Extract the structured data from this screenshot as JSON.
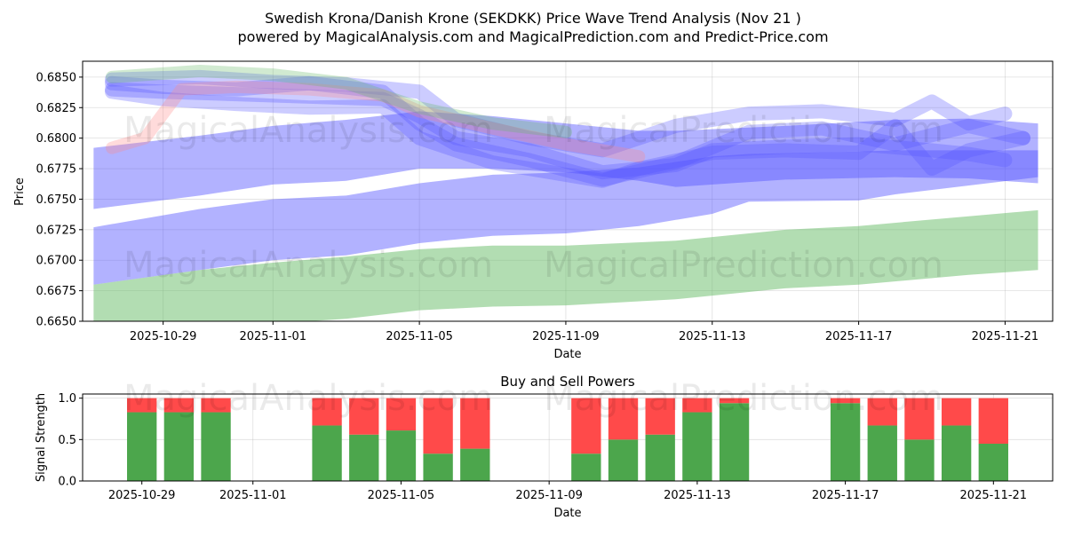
{
  "title_line1": "Swedish Krona/Danish Krone (SEKDKK) Price Wave Trend Analysis (Nov 21 )",
  "title_line2": "powered by MagicalAnalysis.com and MagicalPrediction.com and Predict-Price.com",
  "watermarks": [
    "MagicalAnalysis.com",
    "MagicalPrediction.com"
  ],
  "colors": {
    "buy": "#4ca64c",
    "sell": "#ff4a4a",
    "wave_blue": "#5555ff",
    "wave_green": "#66bb66",
    "wave_red": "#ff8888"
  },
  "chart_data": [
    {
      "type": "area",
      "title": "",
      "xlabel": "Date",
      "ylabel": "Price",
      "x_origin_date": "2025-10-29",
      "x_unit": "days since 2025-10-29",
      "xlim": [
        -2.2,
        24.3
      ],
      "ylim": [
        0.665,
        0.6863
      ],
      "xticks": [
        {
          "offset": 0,
          "label": "2025-10-29"
        },
        {
          "offset": 3,
          "label": "2025-11-01"
        },
        {
          "offset": 7,
          "label": "2025-11-05"
        },
        {
          "offset": 11,
          "label": "2025-11-09"
        },
        {
          "offset": 15,
          "label": "2025-11-13"
        },
        {
          "offset": 19,
          "label": "2025-11-17"
        },
        {
          "offset": 23,
          "label": "2025-11-21"
        }
      ],
      "yticks": [
        "0.6650",
        "0.6675",
        "0.6700",
        "0.6725",
        "0.6750",
        "0.6775",
        "0.6800",
        "0.6825",
        "0.6850"
      ],
      "grid": true,
      "bands": [
        {
          "name": "green-wave-band",
          "color": "green",
          "x": [
            -1.9,
            1,
            3,
            5,
            7,
            9,
            11,
            14,
            17,
            19,
            22,
            23.9
          ],
          "upper": [
            0.668,
            0.6692,
            0.6698,
            0.6703,
            0.6709,
            0.6712,
            0.6712,
            0.6716,
            0.6725,
            0.6728,
            0.6736,
            0.6741
          ],
          "lower": [
            0.664,
            0.6645,
            0.6648,
            0.6652,
            0.6659,
            0.6662,
            0.6663,
            0.6668,
            0.6677,
            0.668,
            0.6688,
            0.6692
          ]
        },
        {
          "name": "blue-wave-band-low",
          "color": "blue",
          "x": [
            -1.9,
            1,
            3,
            5,
            7,
            9,
            11,
            13,
            15,
            16,
            19,
            20,
            23.9
          ],
          "upper": [
            0.6727,
            0.6742,
            0.675,
            0.6753,
            0.6763,
            0.677,
            0.6772,
            0.6776,
            0.6785,
            0.6787,
            0.6789,
            0.679,
            0.679
          ],
          "lower": [
            0.668,
            0.6692,
            0.67,
            0.6704,
            0.6714,
            0.672,
            0.6722,
            0.6728,
            0.6738,
            0.6748,
            0.6749,
            0.6754,
            0.6768
          ]
        },
        {
          "name": "blue-wave-band-high",
          "color": "blue",
          "x": [
            -1.9,
            1,
            3,
            5,
            7,
            9,
            11,
            13,
            14,
            17,
            20,
            22,
            23.9
          ],
          "upper": [
            0.6792,
            0.6802,
            0.681,
            0.6815,
            0.6822,
            0.6818,
            0.6812,
            0.6806,
            0.6806,
            0.681,
            0.6815,
            0.6816,
            0.6812
          ],
          "lower": [
            0.6742,
            0.6753,
            0.6762,
            0.6765,
            0.6775,
            0.6775,
            0.6772,
            0.6765,
            0.676,
            0.6766,
            0.6768,
            0.6767,
            0.6763
          ]
        }
      ],
      "lines": [
        {
          "name": "wave-line-main",
          "color": "blue",
          "x": [
            -1.4,
            0,
            2,
            4,
            6,
            7,
            8,
            10,
            12,
            14,
            15,
            17,
            19,
            21,
            22,
            23
          ],
          "y": [
            0.684,
            0.6838,
            0.6836,
            0.6834,
            0.6832,
            0.6818,
            0.68,
            0.679,
            0.6772,
            0.6778,
            0.679,
            0.6793,
            0.6795,
            0.679,
            0.6787,
            0.6782
          ]
        },
        {
          "name": "wave-line-2",
          "color": "blue",
          "x": [
            -1.4,
            0,
            2,
            4,
            6,
            7,
            8,
            10,
            12,
            14,
            16,
            18,
            20,
            22,
            23.5
          ],
          "y": [
            0.6845,
            0.6842,
            0.684,
            0.6845,
            0.6838,
            0.6812,
            0.6795,
            0.6782,
            0.6766,
            0.678,
            0.6805,
            0.6808,
            0.6795,
            0.681,
            0.68
          ]
        },
        {
          "name": "wave-line-3",
          "color": "blue",
          "x": [
            -1.4,
            0,
            2,
            4,
            6,
            7,
            9,
            11,
            12,
            13,
            15,
            17,
            19,
            20,
            21,
            22,
            23.5
          ],
          "y": [
            0.6838,
            0.6832,
            0.6828,
            0.6825,
            0.6826,
            0.68,
            0.678,
            0.677,
            0.6765,
            0.6775,
            0.6788,
            0.679,
            0.6788,
            0.681,
            0.6775,
            0.679,
            0.68
          ]
        },
        {
          "name": "wave-line-4",
          "color": "blue",
          "x": [
            -1.4,
            1,
            3,
            5,
            7,
            8,
            10,
            12,
            14,
            16,
            18,
            20,
            21,
            22,
            23
          ],
          "y": [
            0.6848,
            0.685,
            0.6846,
            0.6844,
            0.6838,
            0.6815,
            0.68,
            0.679,
            0.681,
            0.682,
            0.6822,
            0.6815,
            0.683,
            0.6812,
            0.682
          ]
        },
        {
          "name": "wave-line-red",
          "color": "red",
          "x": [
            -1.4,
            -0.5,
            0.5,
            2,
            4,
            6,
            7,
            9,
            11,
            13
          ],
          "y": [
            0.6792,
            0.68,
            0.684,
            0.6842,
            0.684,
            0.6835,
            0.6822,
            0.6808,
            0.6795,
            0.6785
          ]
        },
        {
          "name": "wave-line-green-faint",
          "color": "green",
          "x": [
            -1.4,
            1,
            3,
            5,
            7,
            9,
            11
          ],
          "y": [
            0.685,
            0.6855,
            0.6852,
            0.6845,
            0.6825,
            0.6812,
            0.6805
          ]
        }
      ]
    },
    {
      "type": "bar",
      "title": "Buy and Sell Powers",
      "xlabel": "Date",
      "ylabel": "Signal Strength",
      "xlim": [
        -1.6,
        24.6
      ],
      "ylim": [
        0,
        1.05
      ],
      "yticks": [
        "0.0",
        "0.5",
        "1.0"
      ],
      "xticks": [
        {
          "offset": 0,
          "label": "2025-10-29"
        },
        {
          "offset": 3,
          "label": "2025-11-01"
        },
        {
          "offset": 7,
          "label": "2025-11-05"
        },
        {
          "offset": 11,
          "label": "2025-11-09"
        },
        {
          "offset": 15,
          "label": "2025-11-13"
        },
        {
          "offset": 19,
          "label": "2025-11-17"
        },
        {
          "offset": 23,
          "label": "2025-11-21"
        }
      ],
      "categories": [
        "2025-10-29",
        "2025-10-30",
        "2025-10-31",
        "2025-11-03",
        "2025-11-04",
        "2025-11-05",
        "2025-11-06",
        "2025-11-07",
        "2025-11-10",
        "2025-11-11",
        "2025-11-12",
        "2025-11-13",
        "2025-11-14",
        "2025-11-17",
        "2025-11-18",
        "2025-11-19",
        "2025-11-20",
        "2025-11-21"
      ],
      "offsets": [
        0,
        1,
        2,
        5,
        6,
        7,
        8,
        9,
        12,
        13,
        14,
        15,
        16,
        19,
        20,
        21,
        22,
        23
      ],
      "series": [
        {
          "name": "Buy",
          "values": [
            0.83,
            0.83,
            0.83,
            0.67,
            0.56,
            0.61,
            0.33,
            0.39,
            0.33,
            0.5,
            0.56,
            0.83,
            0.94,
            0.94,
            0.67,
            0.5,
            0.67,
            0.45
          ]
        },
        {
          "name": "Sell",
          "values": [
            0.17,
            0.17,
            0.17,
            0.33,
            0.44,
            0.39,
            0.67,
            0.61,
            0.67,
            0.5,
            0.44,
            0.17,
            0.06,
            0.06,
            0.33,
            0.5,
            0.33,
            0.55
          ]
        }
      ]
    }
  ]
}
